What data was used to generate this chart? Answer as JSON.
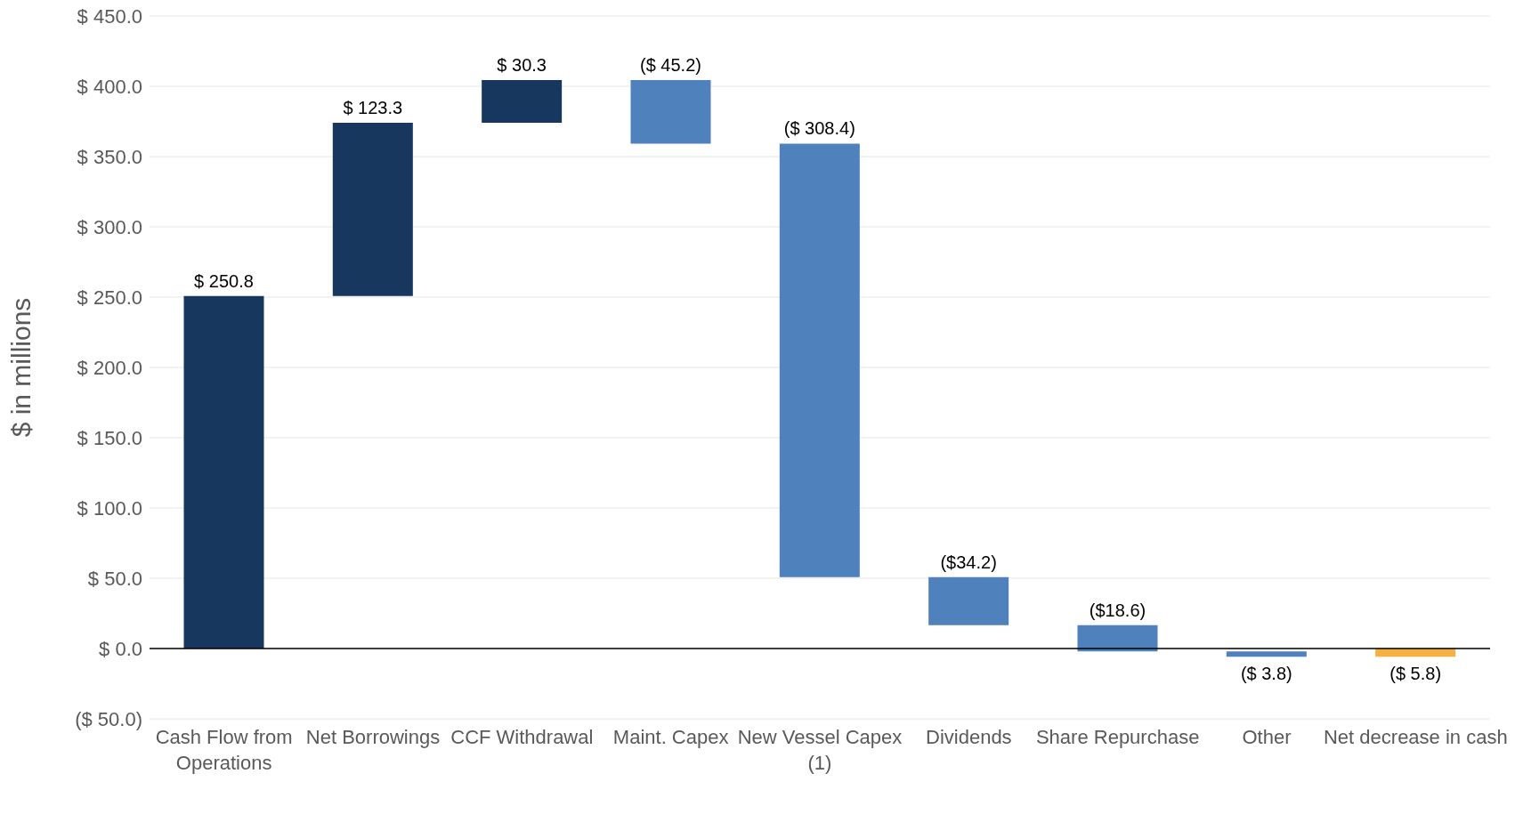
{
  "chart_data": {
    "type": "bar",
    "ylabel": "$ in millions",
    "categories": [
      "Cash Flow from Operations",
      "Net Borrowings",
      "CCF Withdrawal",
      "Maint. Capex",
      "New Vessel Capex (1)",
      "Dividends",
      "Share Repurchase",
      "Other",
      "Net decrease in cash"
    ],
    "values": [
      250.8,
      123.3,
      30.3,
      -45.2,
      -308.4,
      -34.2,
      -18.6,
      -3.8,
      -5.8
    ],
    "base": [
      0,
      250.8,
      374.1,
      404.4,
      359.2,
      50.8,
      16.6,
      -2.0,
      0
    ],
    "colors": [
      "#17375e",
      "#17375e",
      "#17375e",
      "#4f81bd",
      "#4f81bd",
      "#4f81bd",
      "#4f81bd",
      "#4f81bd",
      "#f5b041"
    ],
    "value_labels": [
      "$ 250.8",
      "$ 123.3",
      "$ 30.3",
      "($ 45.2)",
      "($ 308.4)",
      "($34.2)",
      "($18.6)",
      "($ 3.8)",
      "($ 5.8)"
    ],
    "ylim": [
      -50,
      450
    ],
    "yticks": [
      {
        "value": -50,
        "label": "($ 50.0)"
      },
      {
        "value": 0,
        "label": "$ 0.0"
      },
      {
        "value": 50,
        "label": "$ 50.0"
      },
      {
        "value": 100,
        "label": "$ 100.0"
      },
      {
        "value": 150,
        "label": "$ 150.0"
      },
      {
        "value": 200,
        "label": "$ 200.0"
      },
      {
        "value": 250,
        "label": "$ 250.0"
      },
      {
        "value": 300,
        "label": "$ 300.0"
      },
      {
        "value": 350,
        "label": "$ 350.0"
      },
      {
        "value": 400,
        "label": "$ 400.0"
      },
      {
        "value": 450,
        "label": "$ 450.0"
      }
    ],
    "grid": "y",
    "ref_lines": [
      {
        "axis": "y",
        "value": 0,
        "color": "#000000"
      }
    ]
  }
}
